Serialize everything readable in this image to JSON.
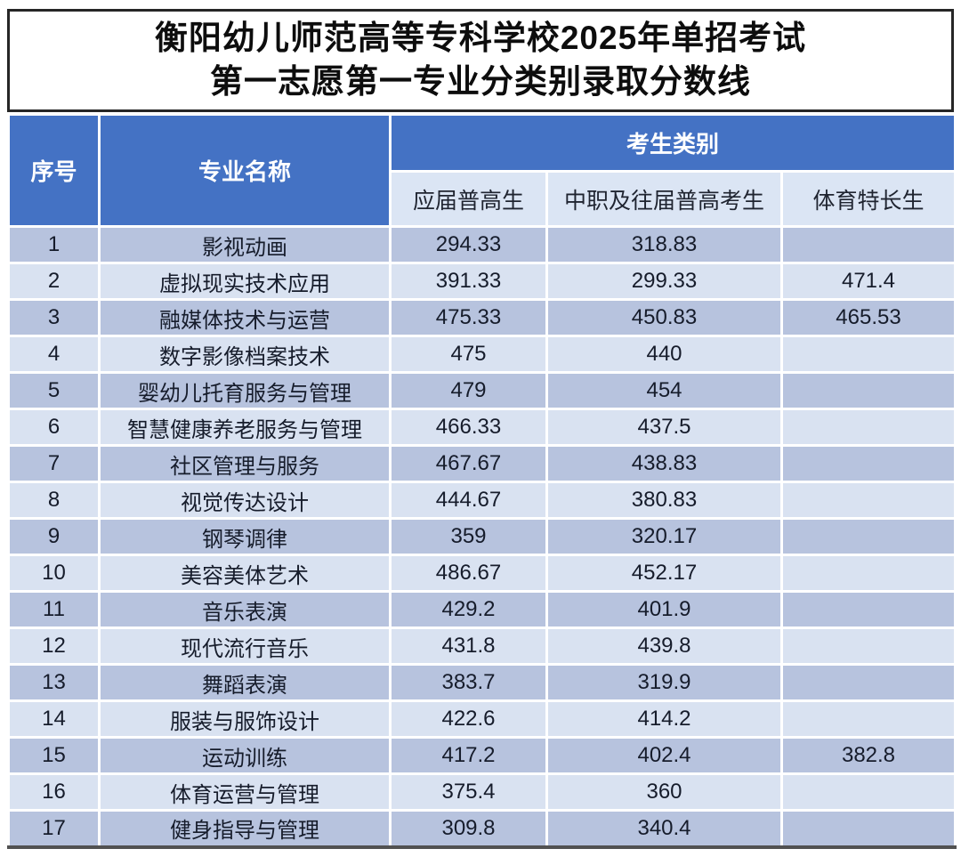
{
  "title": {
    "line1": "衡阳幼儿师范高等专科学校2025年单招考试",
    "line2": "第一志愿第一专业分类别录取分数线"
  },
  "table": {
    "headers": {
      "col_index": "序号",
      "col_major": "专业名称",
      "group_category": "考生类别",
      "sub_columns": [
        "应届普高生",
        "中职及往届普高考生",
        "体育特长生"
      ]
    },
    "rows": [
      {
        "no": "1",
        "major": "影视动画",
        "fresh": "294.33",
        "vocational": "318.83",
        "sports": ""
      },
      {
        "no": "2",
        "major": "虚拟现实技术应用",
        "fresh": "391.33",
        "vocational": "299.33",
        "sports": "471.4"
      },
      {
        "no": "3",
        "major": "融媒体技术与运营",
        "fresh": "475.33",
        "vocational": "450.83",
        "sports": "465.53"
      },
      {
        "no": "4",
        "major": "数字影像档案技术",
        "fresh": "475",
        "vocational": "440",
        "sports": ""
      },
      {
        "no": "5",
        "major": "婴幼儿托育服务与管理",
        "fresh": "479",
        "vocational": "454",
        "sports": ""
      },
      {
        "no": "6",
        "major": "智慧健康养老服务与管理",
        "fresh": "466.33",
        "vocational": "437.5",
        "sports": ""
      },
      {
        "no": "7",
        "major": "社区管理与服务",
        "fresh": "467.67",
        "vocational": "438.83",
        "sports": ""
      },
      {
        "no": "8",
        "major": "视觉传达设计",
        "fresh": "444.67",
        "vocational": "380.83",
        "sports": ""
      },
      {
        "no": "9",
        "major": "钢琴调律",
        "fresh": "359",
        "vocational": "320.17",
        "sports": ""
      },
      {
        "no": "10",
        "major": "美容美体艺术",
        "fresh": "486.67",
        "vocational": "452.17",
        "sports": ""
      },
      {
        "no": "11",
        "major": "音乐表演",
        "fresh": "429.2",
        "vocational": "401.9",
        "sports": ""
      },
      {
        "no": "12",
        "major": "现代流行音乐",
        "fresh": "431.8",
        "vocational": "439.8",
        "sports": ""
      },
      {
        "no": "13",
        "major": "舞蹈表演",
        "fresh": "383.7",
        "vocational": "319.9",
        "sports": ""
      },
      {
        "no": "14",
        "major": "服装与服饰设计",
        "fresh": "422.6",
        "vocational": "414.2",
        "sports": ""
      },
      {
        "no": "15",
        "major": "运动训练",
        "fresh": "417.2",
        "vocational": "402.4",
        "sports": "382.8"
      },
      {
        "no": "16",
        "major": "体育运营与管理",
        "fresh": "375.4",
        "vocational": "360",
        "sports": ""
      },
      {
        "no": "17",
        "major": "健身指导与管理",
        "fresh": "309.8",
        "vocational": "340.4",
        "sports": ""
      }
    ]
  },
  "colors": {
    "header_bg": "#4472C4",
    "header_text": "#FFFFFF",
    "subheader_bg": "#DBE5F4",
    "row_odd_bg": "#B7C3DE",
    "row_even_bg": "#D9E2F1",
    "table_bottom_border": "#515151",
    "title_border": "#262626"
  }
}
